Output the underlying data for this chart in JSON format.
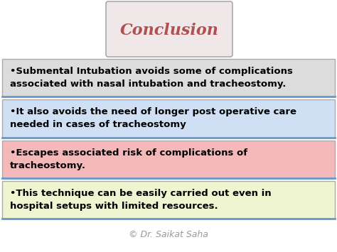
{
  "title": "Conclusion",
  "title_box_color": "#f0e8e8",
  "title_text_color": "#b05050",
  "background_color": "#ffffff",
  "boxes": [
    {
      "text": "•Submental Intubation avoids some of complications\nassociated with nasal intubation and tracheostomy.",
      "bg_color": "#dcdcdc",
      "border_color": "#aaaaaa",
      "border_bottom_color": "#6699cc",
      "text_color": "#000000"
    },
    {
      "text": "•It also avoids the need of longer post operative care\nneeded in cases of tracheostomy",
      "bg_color": "#cfe0f5",
      "border_color": "#aaaaaa",
      "border_bottom_color": "#6699cc",
      "text_color": "#000000"
    },
    {
      "text": "•Escapes associated risk of complications of\ntracheostomy.",
      "bg_color": "#f5b8b8",
      "border_color": "#aaaaaa",
      "border_bottom_color": "#6699cc",
      "text_color": "#000000"
    },
    {
      "text": "•This technique can be easily carried out even in\nhospital setups with limited resources.",
      "bg_color": "#eef5d0",
      "border_color": "#aaaaaa",
      "border_bottom_color": "#6699cc",
      "text_color": "#000000"
    }
  ],
  "footer_text": "© Dr. Saikat Saha",
  "footer_color": "#999999",
  "fig_width": 4.74,
  "fig_height": 3.55,
  "dpi": 100
}
